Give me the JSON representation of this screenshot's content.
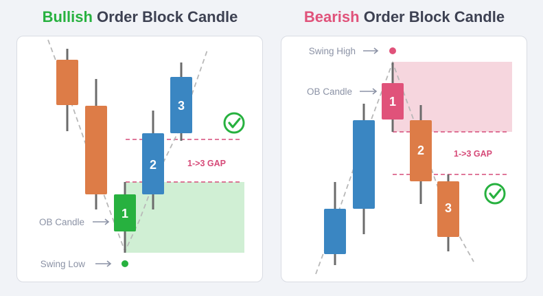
{
  "bullish": {
    "title_highlight": "Bullish",
    "title_rest": " Order Block Candle",
    "candle_1": "1",
    "candle_2": "2",
    "candle_3": "3",
    "gap_label": "1->3 GAP",
    "ob_label": "OB Candle",
    "swing_label": "Swing Low"
  },
  "bearish": {
    "title_highlight": "Bearish",
    "title_rest": " Order Block Candle",
    "candle_1": "1",
    "candle_2": "2",
    "candle_3": "3",
    "gap_label": "1->3 GAP",
    "ob_label": "OB Candle",
    "swing_label": "Swing High"
  },
  "colors": {
    "bull_green": "#27b13f",
    "bear_pink": "#e0527a",
    "orange": "#dd7c47",
    "blue": "#3a86c2",
    "gap_zone_green": "#cdeed2",
    "gap_zone_pink": "#f6d4dc",
    "label_gray": "#8b92a5",
    "dashed_gray": "#b8b8b8"
  },
  "icons": [
    "check-circle-icon",
    "arrow-right-icon",
    "swing-dot-icon"
  ]
}
